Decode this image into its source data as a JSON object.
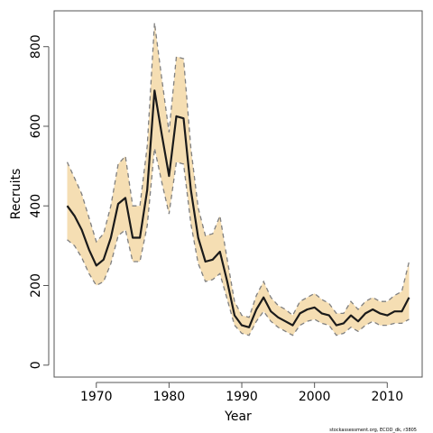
{
  "chart_data": {
    "type": "line",
    "title": "",
    "xlabel": "Year",
    "ylabel": "Recruits",
    "xlim": [
      1964.2,
      2014.8
    ],
    "ylim": [
      -30,
      890
    ],
    "x_ticks": [
      1970,
      1980,
      1990,
      2000,
      2010
    ],
    "y_ticks": [
      0,
      200,
      400,
      600,
      800
    ],
    "grid": false,
    "legend": "none",
    "colors": {
      "band_fill": "#f5deb3",
      "bound_line": "#808080",
      "estimate_line": "#1a1a1a",
      "frame": "#555555"
    },
    "series": [
      {
        "x": [
          1966,
          1967,
          1968,
          1969,
          1970,
          1971,
          1972,
          1973,
          1974,
          1975,
          1976,
          1977,
          1978,
          1979,
          1980,
          1981,
          1982,
          1983,
          1984,
          1985,
          1986,
          1987,
          1988,
          1989,
          1990,
          1991,
          1992,
          1993,
          1994,
          1995,
          1996,
          1997,
          1998,
          1999,
          2000,
          2001,
          2002,
          2003,
          2004,
          2005,
          2006,
          2007,
          2008,
          2009,
          2010,
          2011,
          2012,
          2013
        ],
        "values": [
          400,
          375,
          340,
          290,
          250,
          265,
          320,
          405,
          420,
          320,
          320,
          440,
          690,
          580,
          475,
          625,
          620,
          440,
          320,
          260,
          265,
          285,
          210,
          125,
          100,
          95,
          140,
          170,
          135,
          120,
          110,
          100,
          130,
          140,
          145,
          130,
          125,
          100,
          105,
          125,
          110,
          130,
          140,
          130,
          125,
          135,
          135,
          170
        ]
      },
      {
        "x": [
          1966,
          1967,
          1968,
          1969,
          1970,
          1971,
          1972,
          1973,
          1974,
          1975,
          1976,
          1977,
          1978,
          1979,
          1980,
          1981,
          1982,
          1983,
          1984,
          1985,
          1986,
          1987,
          1988,
          1989,
          1990,
          1991,
          1992,
          1993,
          1994,
          1995,
          1996,
          1997,
          1998,
          1999,
          2000,
          2001,
          2002,
          2003,
          2004,
          2005,
          2006,
          2007,
          2008,
          2009,
          2010,
          2011,
          2012,
          2013
        ],
        "values": [
          510,
          470,
          430,
          370,
          310,
          330,
          400,
          505,
          525,
          400,
          400,
          550,
          860,
          720,
          585,
          775,
          770,
          545,
          395,
          325,
          330,
          375,
          265,
          160,
          125,
          120,
          175,
          210,
          170,
          150,
          140,
          125,
          160,
          170,
          180,
          165,
          155,
          130,
          130,
          160,
          140,
          160,
          170,
          160,
          160,
          175,
          185,
          260
        ]
      },
      {
        "x": [
          1966,
          1967,
          1968,
          1969,
          1970,
          1971,
          1972,
          1973,
          1974,
          1975,
          1976,
          1977,
          1978,
          1979,
          1980,
          1981,
          1982,
          1983,
          1984,
          1985,
          1986,
          1987,
          1988,
          1989,
          1990,
          1991,
          1992,
          1993,
          1994,
          1995,
          1996,
          1997,
          1998,
          1999,
          2000,
          2001,
          2002,
          2003,
          2004,
          2005,
          2006,
          2007,
          2008,
          2009,
          2010,
          2011,
          2012,
          2013
        ],
        "values": [
          315,
          300,
          270,
          230,
          200,
          210,
          255,
          325,
          340,
          260,
          260,
          350,
          545,
          460,
          380,
          510,
          505,
          355,
          255,
          210,
          215,
          230,
          165,
          100,
          80,
          75,
          110,
          135,
          110,
          95,
          85,
          75,
          100,
          110,
          115,
          105,
          100,
          75,
          80,
          95,
          85,
          100,
          110,
          100,
          100,
          105,
          105,
          115
        ]
      }
    ]
  },
  "credit": "stockassessment.org, ECOD_dk, r3805"
}
